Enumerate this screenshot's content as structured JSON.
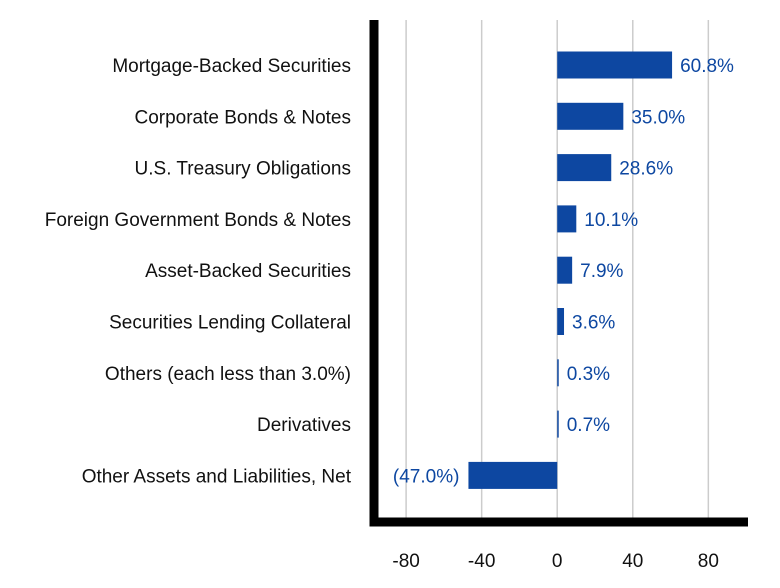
{
  "chart_data": {
    "type": "bar",
    "orientation": "horizontal",
    "categories": [
      "Mortgage-Backed Securities",
      "Corporate Bonds & Notes",
      "U.S. Treasury Obligations",
      "Foreign Government Bonds & Notes",
      "Asset-Backed Securities",
      "Securities Lending Collateral",
      "Others (each less than 3.0%)",
      "Derivatives",
      "Other Assets and Liabilities, Net"
    ],
    "values": [
      60.8,
      35.0,
      28.6,
      10.1,
      7.9,
      3.6,
      0.3,
      0.7,
      -47.0
    ],
    "data_labels": [
      "60.8%",
      "35.0%",
      "28.6%",
      "10.1%",
      "7.9%",
      "3.6%",
      "0.3%",
      "0.7%",
      "(47.0%)"
    ],
    "x_ticks": [
      -80,
      -40,
      0,
      40,
      80
    ],
    "x_tick_labels": [
      "-80",
      "-40",
      "0",
      "40",
      "80"
    ],
    "xlim": [
      -97,
      101
    ],
    "grid": true,
    "legend": "none",
    "title": "",
    "xlabel": "",
    "ylabel": "",
    "colors": {
      "bar": "#0d47a1",
      "label": "#0d47a1",
      "grid": "#cccccc",
      "axis": "#000000"
    }
  }
}
